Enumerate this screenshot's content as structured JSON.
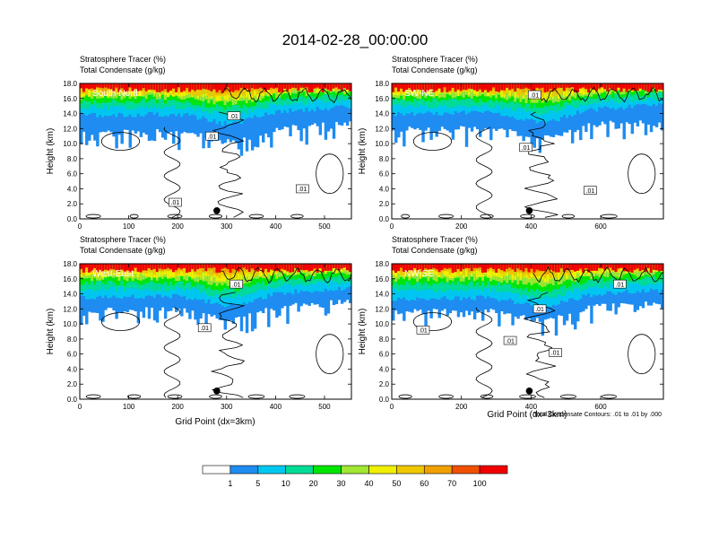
{
  "title": "2014-02-28_00:00:00",
  "header": {
    "line1": "Stratosphere Tracer   (%)",
    "line2": "Total Condensate   (g/kg)"
  },
  "ylabel": "Height (km)",
  "xlabel": "Grid Point (dx=3km)",
  "contour_note": "Total Condensate Contours: .01 to .01 by .000",
  "colorbar": {
    "labels": [
      "1",
      "5",
      "10",
      "20",
      "30",
      "40",
      "50",
      "60",
      "70",
      "100"
    ],
    "colors": [
      "#ffffff",
      "#1e8cf0",
      "#00c8f0",
      "#00dc96",
      "#00e600",
      "#a0e632",
      "#f0f000",
      "#f0c800",
      "#f0a000",
      "#f05000",
      "#f00000"
    ]
  },
  "chart_data": [
    {
      "type": "heatmap",
      "panel_label": "South-North",
      "xlim": [
        0,
        555
      ],
      "xticks": [
        "0",
        "100",
        "200",
        "300",
        "400",
        "500"
      ],
      "ylim": [
        0,
        18
      ],
      "yticks": [
        "0.0",
        "2.0",
        "4.0",
        "6.0",
        "8.0",
        "10.0",
        "12.0",
        "14.0",
        "16.0",
        "18.0"
      ],
      "marker": [
        280,
        1.1
      ],
      "contour_labels": [
        {
          "text": ".01",
          "x": 195,
          "y": 2.2
        },
        {
          "text": ".01",
          "x": 270,
          "y": 11.0
        },
        {
          "text": ".01",
          "x": 315,
          "y": 13.7
        },
        {
          "text": ".01",
          "x": 455,
          "y": 4.0
        }
      ]
    },
    {
      "type": "heatmap",
      "panel_label": "SW-NE",
      "xlim": [
        0,
        780
      ],
      "xticks": [
        "0",
        "200",
        "400",
        "600"
      ],
      "ylim": [
        0,
        18
      ],
      "yticks": [
        "0.0",
        "2.0",
        "4.0",
        "6.0",
        "8.0",
        "10.0",
        "12.0",
        "14.0",
        "16.0",
        "18.0"
      ],
      "marker": [
        395,
        1.1
      ],
      "contour_labels": [
        {
          "text": ".01",
          "x": 410,
          "y": 16.5
        },
        {
          "text": ".01",
          "x": 385,
          "y": 9.5
        },
        {
          "text": ".01",
          "x": 570,
          "y": 3.8
        }
      ]
    },
    {
      "type": "heatmap",
      "panel_label": "West-East",
      "xlim": [
        0,
        555
      ],
      "xticks": [
        "0",
        "100",
        "200",
        "300",
        "400",
        "500"
      ],
      "ylim": [
        0,
        18
      ],
      "yticks": [
        "0.0",
        "2.0",
        "4.0",
        "6.0",
        "8.0",
        "10.0",
        "12.0",
        "14.0",
        "16.0",
        "18.0"
      ],
      "marker": [
        280,
        1.1
      ],
      "contour_labels": [
        {
          "text": ".01",
          "x": 320,
          "y": 15.3
        },
        {
          "text": ".01",
          "x": 255,
          "y": 9.5
        }
      ]
    },
    {
      "type": "heatmap",
      "panel_label": "NW-SE",
      "xlim": [
        0,
        780
      ],
      "xticks": [
        "0",
        "200",
        "400",
        "600"
      ],
      "ylim": [
        0,
        18
      ],
      "yticks": [
        "0.0",
        "2.0",
        "4.0",
        "6.0",
        "8.0",
        "10.0",
        "12.0",
        "14.0",
        "16.0",
        "18.0"
      ],
      "marker": [
        395,
        1.1
      ],
      "contour_labels": [
        {
          "text": ".01",
          "x": 655,
          "y": 15.3
        },
        {
          "text": ".01",
          "x": 425,
          "y": 12.0
        },
        {
          "text": ".01",
          "x": 90,
          "y": 9.2
        },
        {
          "text": ".01",
          "x": 340,
          "y": 7.8
        },
        {
          "text": ".01",
          "x": 470,
          "y": 6.2
        }
      ]
    }
  ]
}
